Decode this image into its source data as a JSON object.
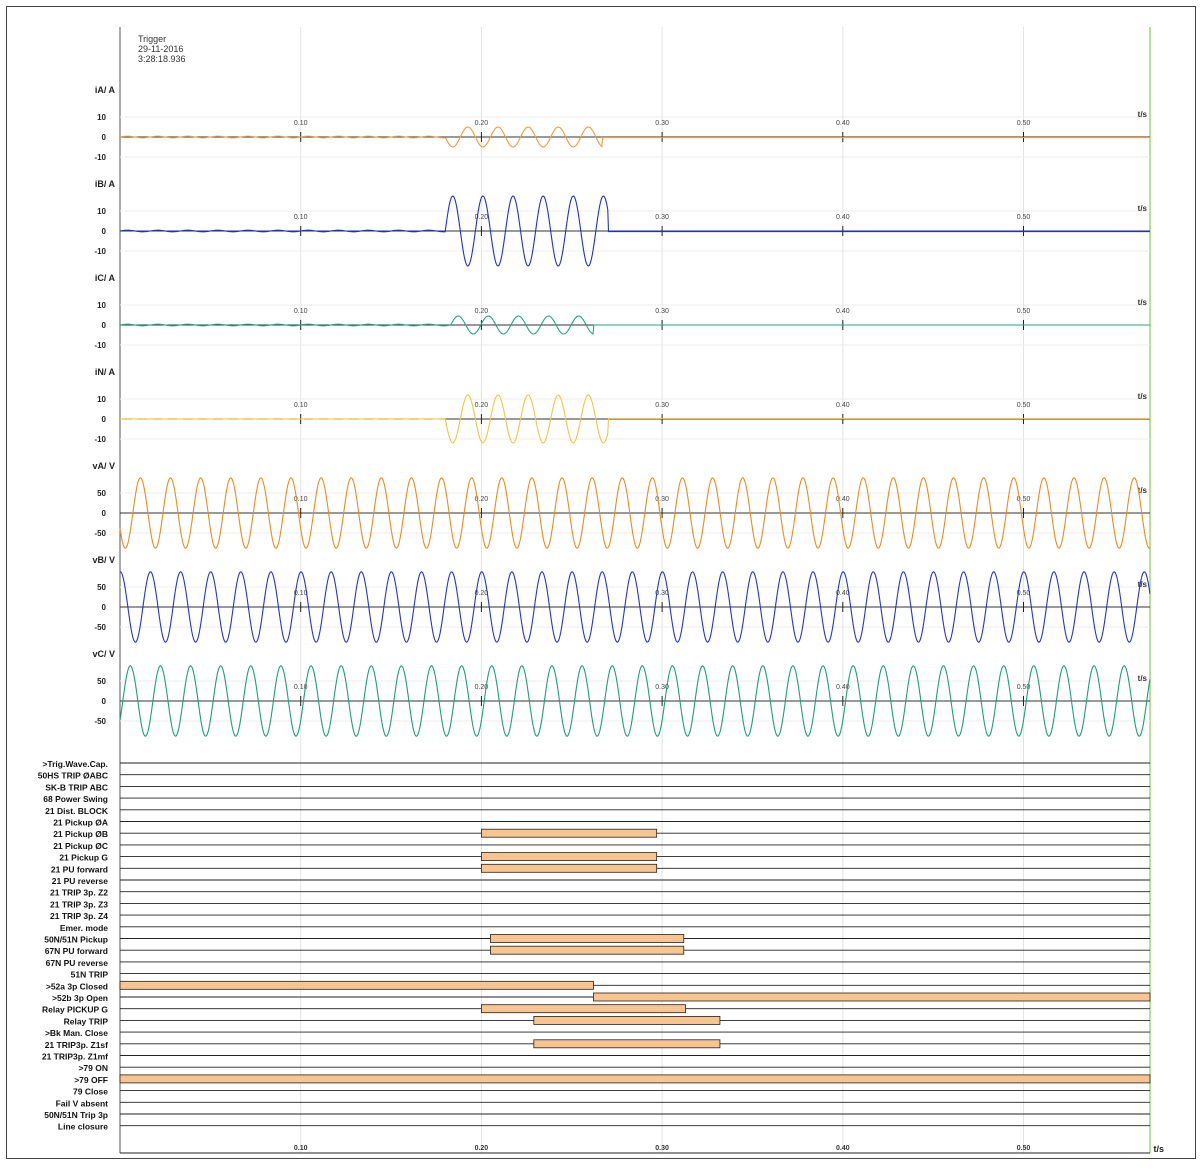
{
  "trigger": {
    "title": "Trigger",
    "date": "29-11-2016",
    "time": "3:28:18.936"
  },
  "colors": {
    "iA": "#f39a3d",
    "iB": "#1f2fd6",
    "iC": "#1ea882",
    "iN": "#f5c542",
    "vA": "#f08a1c",
    "vB": "#2433d4",
    "vC": "#1aa07a",
    "bar_fill": "#f8c590",
    "bar_stroke": "#222222",
    "trigger_line": "#7fd34d"
  },
  "chart_data": {
    "type": "line",
    "x_unit_label": "t/s",
    "xlim": [
      0,
      0.57
    ],
    "x_ticks": [
      0.1,
      0.2,
      0.3,
      0.4,
      0.5
    ],
    "x_tick_labels": [
      "0.10",
      "0.20",
      "0.30",
      "0.40",
      "0.50"
    ],
    "trigger_x": 0.57,
    "analog_channels": [
      {
        "name": "iA/ A",
        "color_key": "iA",
        "ylim": [
          -20,
          20
        ],
        "y_ticks": [
          10,
          0,
          -10
        ],
        "y_tick_labels": [
          "10",
          "0",
          "-10"
        ],
        "fault": {
          "start": 0.18,
          "end": 0.267,
          "amplitude": 5,
          "freq_hz": 60,
          "phase": 3.14159,
          "pre_noise": 0.4,
          "post_level": -0.3
        }
      },
      {
        "name": "iB/ A",
        "color_key": "iB",
        "ylim": [
          -20,
          20
        ],
        "y_ticks": [
          10,
          0,
          -10
        ],
        "y_tick_labels": [
          "10",
          "0",
          "-10"
        ],
        "fault": {
          "start": 0.18,
          "end": 0.27,
          "amplitude": 17.5,
          "freq_hz": 60,
          "phase": 0,
          "pre_noise": 0.4,
          "post_level": -0.3
        }
      },
      {
        "name": "iC/ A",
        "color_key": "iC",
        "ylim": [
          -20,
          20
        ],
        "y_ticks": [
          10,
          0,
          -10
        ],
        "y_tick_labels": [
          "10",
          "0",
          "-10"
        ],
        "fault": {
          "start": 0.183,
          "end": 0.262,
          "amplitude": 4.5,
          "freq_hz": 60,
          "phase": 0,
          "pre_noise": 0.4,
          "post_level": 0
        }
      },
      {
        "name": "iN/ A",
        "color_key": "iN",
        "ylim": [
          -20,
          20
        ],
        "y_ticks": [
          10,
          0,
          -10
        ],
        "y_tick_labels": [
          "10",
          "0",
          "-10"
        ],
        "fault": {
          "start": 0.18,
          "end": 0.27,
          "amplitude": 12,
          "freq_hz": 60,
          "phase": 3.14159,
          "pre_noise": 0.1,
          "post_level": 0.3
        }
      },
      {
        "name": "vA/ V",
        "color_key": "vA",
        "ylim": [
          -100,
          100
        ],
        "y_ticks": [
          50,
          0,
          -50
        ],
        "y_tick_labels": [
          "50",
          "0",
          "-50"
        ],
        "sine": {
          "amplitude": 88,
          "freq_hz": 60,
          "phase": 3.6
        }
      },
      {
        "name": "vB/ V",
        "color_key": "vB",
        "ylim": [
          -100,
          100
        ],
        "y_ticks": [
          50,
          0,
          -50
        ],
        "y_tick_labels": [
          "50",
          "0",
          "-50"
        ],
        "sine": {
          "amplitude": 88,
          "freq_hz": 60,
          "phase": 1.5
        }
      },
      {
        "name": "vC/ V",
        "color_key": "vC",
        "ylim": [
          -100,
          100
        ],
        "y_ticks": [
          50,
          0,
          -50
        ],
        "y_tick_labels": [
          "50",
          "0",
          "-50"
        ],
        "sine": {
          "amplitude": 88,
          "freq_hz": 60,
          "phase": 5.7
        }
      }
    ],
    "digital_channels": [
      {
        "label": ">Trig.Wave.Cap.",
        "intervals": []
      },
      {
        "label": "50HS TRIP ØABC",
        "intervals": []
      },
      {
        "label": "SK-B TRIP ABC",
        "intervals": []
      },
      {
        "label": "68 Power Swing",
        "intervals": []
      },
      {
        "label": "21 Dist. BLOCK",
        "intervals": []
      },
      {
        "label": "21 Pickup ØA",
        "intervals": []
      },
      {
        "label": "21 Pickup ØB",
        "intervals": [
          [
            0.2,
            0.297
          ]
        ]
      },
      {
        "label": "21 Pickup ØC",
        "intervals": []
      },
      {
        "label": "21 Pickup G",
        "intervals": [
          [
            0.2,
            0.297
          ]
        ]
      },
      {
        "label": "21 PU forward",
        "intervals": [
          [
            0.2,
            0.297
          ]
        ]
      },
      {
        "label": "21 PU reverse",
        "intervals": []
      },
      {
        "label": "21 TRIP 3p. Z2",
        "intervals": []
      },
      {
        "label": "21 TRIP 3p. Z3",
        "intervals": []
      },
      {
        "label": "21 TRIP 3p. Z4",
        "intervals": []
      },
      {
        "label": "Emer. mode",
        "intervals": []
      },
      {
        "label": "50N/51N Pickup",
        "intervals": [
          [
            0.205,
            0.312
          ]
        ]
      },
      {
        "label": "67N PU forward",
        "intervals": [
          [
            0.205,
            0.312
          ]
        ]
      },
      {
        "label": "67N PU reverse",
        "intervals": []
      },
      {
        "label": "51N TRIP",
        "intervals": []
      },
      {
        "label": ">52a 3p Closed",
        "intervals": [
          [
            0,
            0.262
          ]
        ]
      },
      {
        "label": ">52b 3p Open",
        "intervals": [
          [
            0.262,
            0.57
          ]
        ]
      },
      {
        "label": "Relay PICKUP G",
        "intervals": [
          [
            0.2,
            0.313
          ]
        ]
      },
      {
        "label": "Relay TRIP",
        "intervals": [
          [
            0.229,
            0.332
          ]
        ]
      },
      {
        "label": ">Bk Man. Close",
        "intervals": []
      },
      {
        "label": "21 TRIP3p. Z1sf",
        "intervals": [
          [
            0.229,
            0.332
          ]
        ]
      },
      {
        "label": "21 TRIP3p. Z1mf",
        "intervals": []
      },
      {
        "label": ">79 ON",
        "intervals": []
      },
      {
        "label": ">79 OFF",
        "intervals": [
          [
            0,
            0.57
          ]
        ]
      },
      {
        "label": "79 Close",
        "intervals": []
      },
      {
        "label": "Fail V absent",
        "intervals": []
      },
      {
        "label": "50N/51N Trip 3p",
        "intervals": []
      },
      {
        "label": "Line closure",
        "intervals": []
      }
    ],
    "digital_time_label": "t/s"
  }
}
